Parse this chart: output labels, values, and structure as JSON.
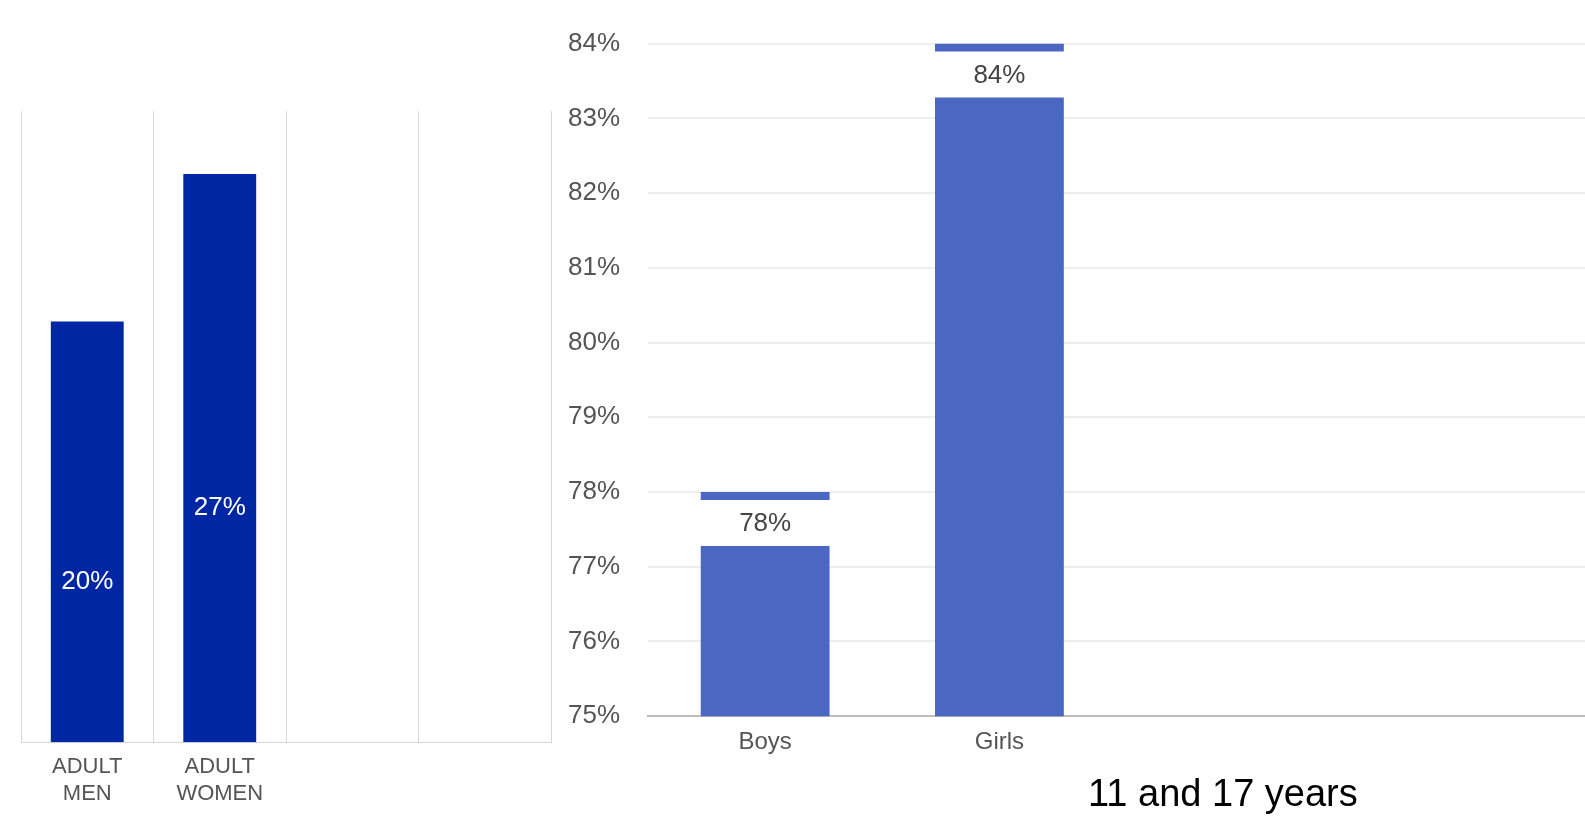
{
  "chart_data": [
    {
      "type": "bar",
      "categories": [
        "ADULT MEN",
        "ADULT WOMEN",
        null,
        null
      ],
      "values": [
        20,
        27,
        null,
        null
      ],
      "color": "#0027a3",
      "value_labels": [
        "20%",
        "27%",
        null,
        null
      ],
      "ylim": [
        0,
        30
      ],
      "tick_labels": "x",
      "grid": "x"
    },
    {
      "type": "bar",
      "categories": [
        "Boys",
        "Girls",
        null,
        null
      ],
      "values": [
        78,
        84,
        null,
        null
      ],
      "color": "#4b67c3",
      "value_labels": [
        "78%",
        "84%",
        null,
        null
      ],
      "ylim": [
        75,
        84
      ],
      "yticks": [
        {
          "value": 75,
          "label": "75%"
        },
        {
          "value": 76,
          "label": "76%"
        },
        {
          "value": 77,
          "label": "77%"
        },
        {
          "value": 78,
          "label": "78%"
        },
        {
          "value": 79,
          "label": "79%"
        },
        {
          "value": 80,
          "label": "80%"
        },
        {
          "value": 81,
          "label": "81%"
        },
        {
          "value": 82,
          "label": "82%"
        },
        {
          "value": 83,
          "label": "83%"
        },
        {
          "value": 84,
          "label": "84%"
        }
      ],
      "grid": "y",
      "annotations": [
        "11 and 17 years"
      ]
    }
  ]
}
